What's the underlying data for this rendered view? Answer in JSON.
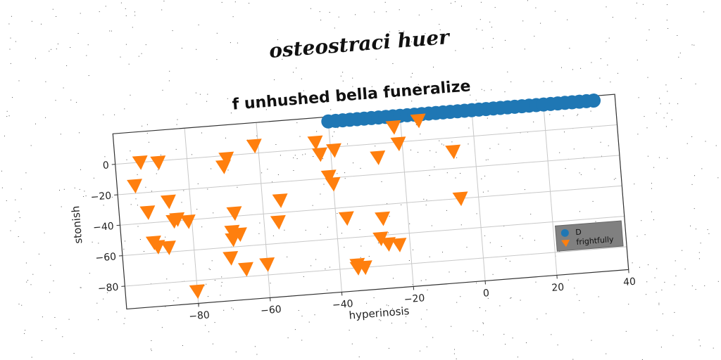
{
  "suptitle": "osteostraci huer",
  "chart_data": {
    "type": "scatter",
    "title": "f unhushed bella funeralize",
    "xlabel": "hyperinosis",
    "ylabel": "stonish",
    "xlim": [
      -100,
      40
    ],
    "ylim": [
      -95,
      20
    ],
    "xticks": [
      -80,
      -60,
      -40,
      -20,
      0,
      20,
      40
    ],
    "yticks": [
      0,
      -20,
      -40,
      -60,
      -80
    ],
    "grid": true,
    "legend_position": "lower-right",
    "series": [
      {
        "name": "D",
        "marker": "circle",
        "color": "#1f77b4",
        "x": [
          -40,
          -38,
          -36,
          -34,
          -32,
          -30,
          -28,
          -26,
          -24,
          -22,
          -20,
          -18,
          -16,
          -14,
          -12,
          -10,
          -8,
          -6,
          -4,
          -2,
          0,
          2,
          4,
          6,
          8,
          10,
          12,
          14,
          16,
          18,
          20,
          22,
          24,
          26,
          28,
          30,
          32,
          34
        ],
        "y": [
          17,
          17,
          17,
          17,
          17,
          17,
          17,
          17,
          17,
          17,
          17,
          17,
          17,
          17,
          17,
          17,
          17,
          17,
          17,
          17,
          17,
          17,
          17,
          17,
          17,
          17,
          17,
          17,
          17,
          17,
          17,
          17,
          17,
          17,
          17,
          17,
          17,
          17
        ]
      },
      {
        "name": "frightfully",
        "marker": "triangle-down",
        "color": "#ff7f0e",
        "x": [
          -93,
          -88,
          -95,
          -92,
          -86,
          -91,
          -85,
          -84,
          -81,
          -90,
          -87,
          -80,
          -69,
          -70,
          -68,
          -69,
          -70,
          -67,
          -69,
          -66,
          -61,
          -60,
          -55,
          -56,
          -44,
          -43,
          -39,
          -41,
          -40,
          -37,
          -35,
          -35,
          -33,
          -27,
          -27,
          -28,
          -26,
          -23,
          -22,
          -21,
          -15,
          -6,
          -5
        ],
        "y": [
          0,
          -1,
          -15,
          -33,
          -27,
          -53,
          -40,
          -39,
          -41,
          -56,
          -57,
          -87,
          -2,
          -7,
          -38,
          -50,
          -67,
          -52,
          -55,
          -75,
          5,
          -73,
          -32,
          -46,
          4,
          -4,
          -2,
          -19,
          -24,
          -47,
          -78,
          -80,
          -80,
          -9,
          -49,
          -62,
          -66,
          -67,
          10,
          -1,
          13,
          -9,
          -40
        ]
      }
    ]
  }
}
